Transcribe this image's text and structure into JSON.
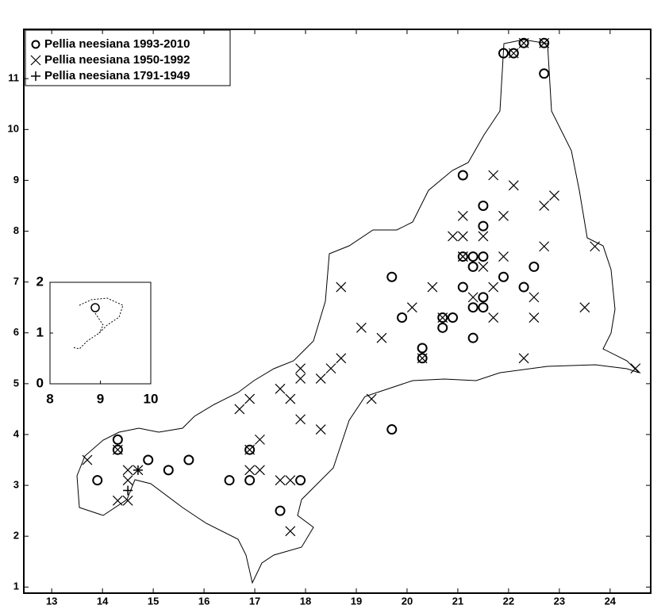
{
  "chart_data": {
    "type": "scatter",
    "xlim": [
      12.45,
      24.8
    ],
    "ylim": [
      0.88,
      11.97
    ],
    "xticks": [
      13,
      14,
      15,
      16,
      17,
      18,
      19,
      20,
      21,
      22,
      23,
      24
    ],
    "yticks": [
      1,
      2,
      3,
      4,
      5,
      6,
      7,
      8,
      9,
      10,
      11
    ],
    "legend": "upper left",
    "series": [
      {
        "name": "Pellia neesiana 1993-2010",
        "marker": "circle",
        "color": "#000000",
        "x": [
          22.3,
          22.7,
          21.9,
          22.1,
          22.7,
          21.1,
          21.5,
          21.5,
          21.1,
          21.3,
          21.5,
          21.3,
          22.5,
          19.7,
          21.9,
          21.1,
          22.3,
          21.5,
          21.3,
          21.5,
          19.9,
          20.7,
          20.9,
          20.7,
          21.3,
          20.3,
          20.3,
          19.7,
          14.3,
          14.3,
          16.9,
          14.9,
          15.7,
          15.3,
          13.9,
          16.5,
          16.9,
          17.9,
          17.5
        ],
        "values": [
          11.7,
          11.7,
          11.5,
          11.5,
          11.1,
          9.1,
          8.5,
          8.1,
          7.5,
          7.5,
          7.5,
          7.3,
          7.3,
          7.1,
          7.1,
          6.9,
          6.9,
          6.7,
          6.5,
          6.5,
          6.3,
          6.3,
          6.3,
          6.1,
          5.9,
          5.7,
          5.5,
          4.1,
          3.9,
          3.7,
          3.7,
          3.5,
          3.5,
          3.3,
          3.1,
          3.1,
          3.1,
          3.1,
          2.5
        ]
      },
      {
        "name": "Pellia neesiana 1950-1992",
        "marker": "x",
        "color": "#000000",
        "x": [
          21.7,
          22.1,
          22.9,
          22.7,
          21.1,
          21.9,
          20.9,
          21.1,
          21.5,
          22.7,
          23.7,
          21.1,
          21.9,
          21.5,
          18.7,
          20.5,
          21.7,
          21.3,
          22.5,
          20.1,
          23.5,
          21.7,
          22.5,
          19.1,
          19.5,
          22.3,
          18.7,
          24.5,
          17.9,
          18.5,
          17.9,
          18.3,
          17.5,
          16.7,
          16.9,
          17.7,
          19.3,
          17.9,
          18.3,
          17.1,
          13.7,
          14.5,
          16.9,
          17.1,
          14.5,
          17.5,
          17.7,
          14.3,
          14.5,
          17.7,
          22.3,
          22.7,
          22.1,
          20.7,
          20.3,
          14.3,
          16.9,
          21.1,
          14.7
        ],
        "values": [
          9.1,
          8.9,
          8.7,
          8.5,
          8.3,
          8.3,
          7.9,
          7.9,
          7.9,
          7.7,
          7.7,
          7.5,
          7.5,
          7.3,
          6.9,
          6.9,
          6.9,
          6.7,
          6.7,
          6.5,
          6.5,
          6.3,
          6.3,
          6.1,
          5.9,
          5.5,
          5.5,
          5.3,
          5.3,
          5.3,
          5.1,
          5.1,
          4.9,
          4.5,
          4.7,
          4.7,
          4.7,
          4.3,
          4.1,
          3.9,
          3.5,
          3.3,
          3.3,
          3.3,
          3.1,
          3.1,
          3.1,
          2.7,
          2.7,
          2.1,
          11.7,
          11.7,
          11.5,
          6.3,
          5.5,
          3.7,
          3.7,
          7.5,
          3.3
        ]
      },
      {
        "name": "Pellia neesiana 1791-1949",
        "marker": "plus",
        "color": "#000000",
        "x": [
          14.5,
          14.7
        ],
        "values": [
          2.9,
          3.3
        ]
      }
    ],
    "inset": {
      "xlim": [
        8,
        10
      ],
      "ylim": [
        0,
        2
      ],
      "xticks": [
        8,
        9,
        10
      ],
      "yticks": [
        0,
        1,
        2
      ]
    }
  }
}
